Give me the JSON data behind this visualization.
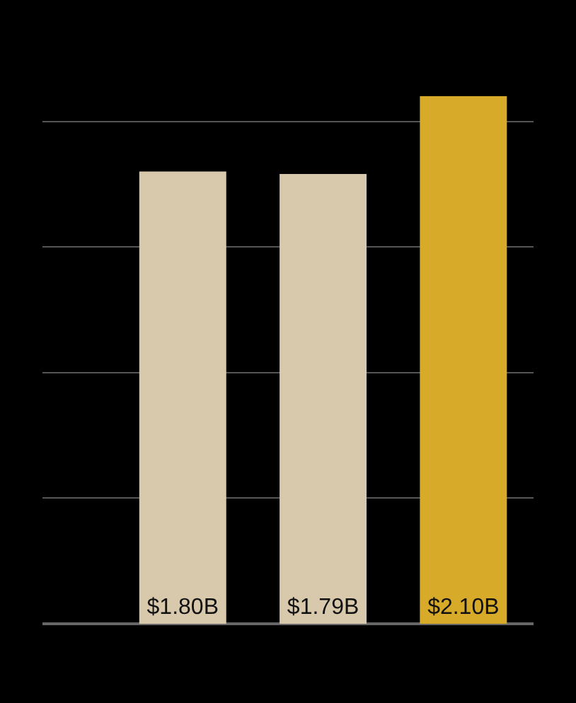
{
  "chart_data": {
    "type": "bar",
    "categories": [
      null,
      null,
      null
    ],
    "values": [
      1.8,
      1.79,
      2.1
    ],
    "colors": [
      "#d8c9ad",
      "#d8c9ad",
      "#d8aa2a"
    ],
    "value_labels": [
      "$1.80B",
      "$1.79B",
      "$2.10B"
    ],
    "ylim": [
      0,
      2.1
    ],
    "yticks": [
      {
        "value": 0,
        "label": null
      },
      {
        "value": 0.5,
        "label": null
      },
      {
        "value": 1,
        "label": null
      },
      {
        "value": 1.5,
        "label": null
      },
      {
        "value": 2,
        "label": null
      }
    ],
    "grid": "y"
  }
}
